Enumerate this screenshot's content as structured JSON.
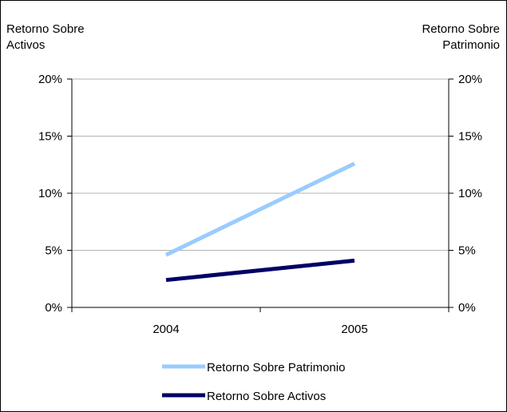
{
  "chart_data": {
    "type": "line",
    "categories": [
      "2004",
      "2005"
    ],
    "series": [
      {
        "name": "Retorno Sobre Patrimonio",
        "values": [
          4.6,
          12.6
        ],
        "color": "#99ccff",
        "axis": "right"
      },
      {
        "name": "Retorno Sobre Activos",
        "values": [
          2.4,
          4.1
        ],
        "color": "#000066",
        "axis": "left"
      }
    ],
    "left_axis": {
      "title_lines": [
        "Retorno Sobre",
        "Activos"
      ],
      "ticks": [
        "0%",
        "5%",
        "10%",
        "15%",
        "20%"
      ],
      "ylim": [
        0,
        20
      ]
    },
    "right_axis": {
      "title_lines": [
        "Retorno Sobre",
        "Patrimonio"
      ],
      "ticks": [
        "0%",
        "5%",
        "10%",
        "15%",
        "20%"
      ],
      "ylim": [
        0,
        20
      ]
    },
    "grid": true,
    "legend_placement": "bottom"
  }
}
